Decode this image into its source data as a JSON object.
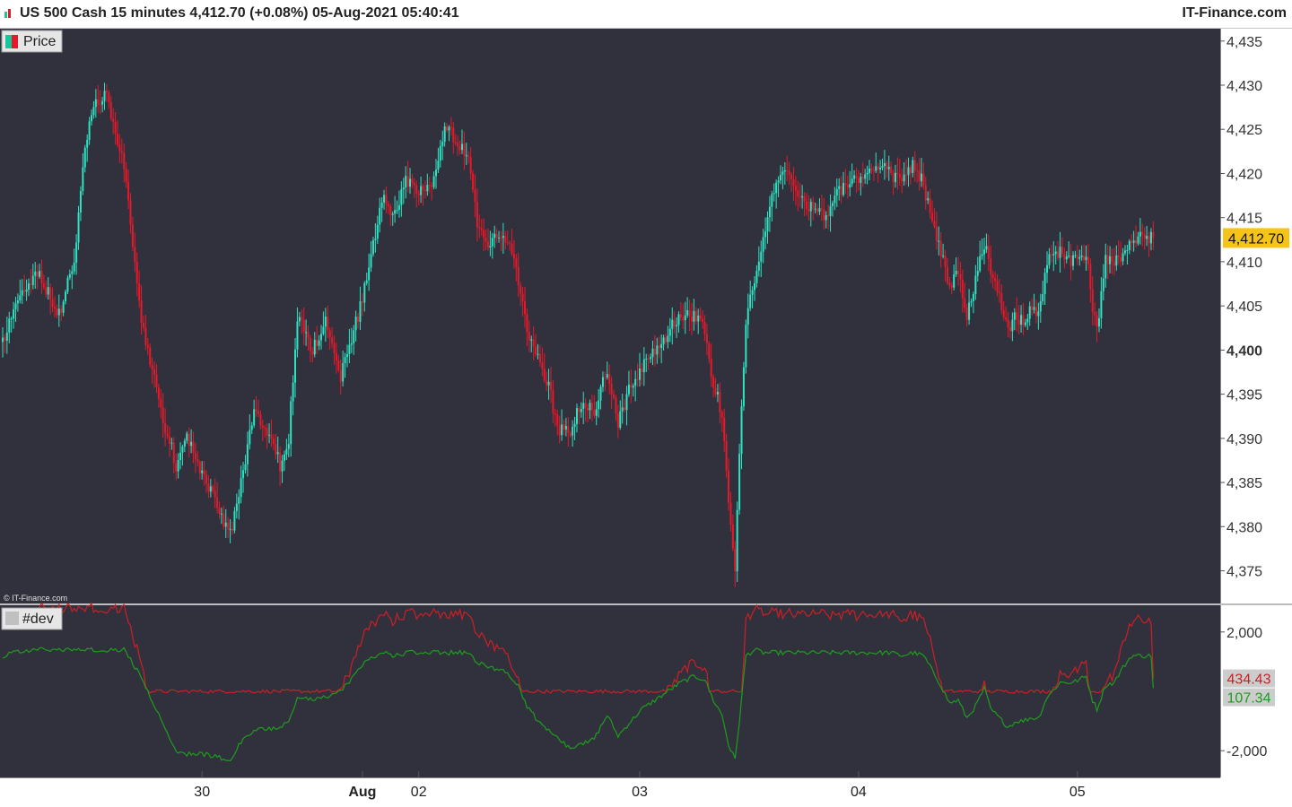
{
  "window": {
    "title": "US 500 Cash 15 minutes 4,412.70 (+0.08%) 05-Aug-2021 05:40:41",
    "brand": "IT-Finance.com",
    "watermark": "© IT-Finance.com"
  },
  "colors": {
    "background": "#31313d",
    "up": "#2de3c2",
    "down": "#e5192a",
    "dev_high": "#cc1f25",
    "dev_low": "#1d9d1d",
    "price_badge": "#f6c318"
  },
  "chart_data": [
    {
      "type": "candlestick",
      "panel": "price",
      "legend": "Price",
      "ylim": [
        4371.3,
        4436.4
      ],
      "yticks": [
        "4,435",
        "4,430",
        "4,425",
        "4,420",
        "4,415",
        "4,410",
        "4,405",
        "4,400",
        "4,395",
        "4,390",
        "4,385",
        "4,380",
        "4,375"
      ],
      "ytick_values": [
        4435,
        4430,
        4425,
        4420,
        4415,
        4410,
        4405,
        4400,
        4395,
        4390,
        4385,
        4380,
        4375
      ],
      "bold_tick": "4,400",
      "xticks": [
        "30",
        "Aug",
        "02",
        "03",
        "04",
        "05"
      ],
      "xtick_bars": [
        92,
        166,
        192,
        294,
        395,
        496
      ],
      "bar_count": 532,
      "last_price": 4412.7,
      "last_price_label": "4,412.70",
      "anchors": [
        [
          0,
          4401
        ],
        [
          6,
          4405
        ],
        [
          16,
          4409
        ],
        [
          26,
          4404
        ],
        [
          33,
          4410
        ],
        [
          38,
          4423
        ],
        [
          42,
          4428
        ],
        [
          48,
          4429
        ],
        [
          56,
          4421
        ],
        [
          63,
          4405
        ],
        [
          72,
          4394
        ],
        [
          80,
          4387
        ],
        [
          85,
          4390
        ],
        [
          92,
          4386
        ],
        [
          98,
          4383
        ],
        [
          105,
          4379
        ],
        [
          111,
          4386
        ],
        [
          116,
          4393
        ],
        [
          122,
          4391
        ],
        [
          128,
          4387
        ],
        [
          132,
          4390
        ],
        [
          136,
          4404
        ],
        [
          143,
          4400
        ],
        [
          149,
          4403
        ],
        [
          156,
          4397
        ],
        [
          162,
          4402
        ],
        [
          167,
          4407
        ],
        [
          172,
          4413
        ],
        [
          176,
          4418
        ],
        [
          180,
          4415
        ],
        [
          186,
          4419
        ],
        [
          193,
          4418
        ],
        [
          199,
          4419
        ],
        [
          204,
          4425
        ],
        [
          209,
          4424
        ],
        [
          215,
          4422
        ],
        [
          219,
          4414
        ],
        [
          224,
          4412
        ],
        [
          232,
          4413
        ],
        [
          238,
          4408
        ],
        [
          242,
          4402
        ],
        [
          247,
          4399
        ],
        [
          252,
          4396
        ],
        [
          256,
          4391
        ],
        [
          262,
          4391
        ],
        [
          267,
          4394
        ],
        [
          273,
          4393
        ],
        [
          279,
          4398
        ],
        [
          284,
          4392
        ],
        [
          290,
          4396
        ],
        [
          295,
          4398
        ],
        [
          301,
          4400
        ],
        [
          307,
          4402
        ],
        [
          313,
          4404
        ],
        [
          319,
          4404
        ],
        [
          324,
          4402
        ],
        [
          328,
          4396
        ],
        [
          332,
          4393
        ],
        [
          335,
          4383
        ],
        [
          338,
          4375
        ],
        [
          340,
          4388
        ],
        [
          343,
          4403
        ],
        [
          347,
          4408
        ],
        [
          351,
          4412
        ],
        [
          355,
          4417
        ],
        [
          359,
          4420
        ],
        [
          363,
          4420
        ],
        [
          367,
          4418
        ],
        [
          373,
          4416
        ],
        [
          379,
          4415
        ],
        [
          385,
          4418
        ],
        [
          393,
          4419
        ],
        [
          399,
          4420
        ],
        [
          405,
          4421
        ],
        [
          410,
          4420
        ],
        [
          415,
          4419
        ],
        [
          420,
          4421
        ],
        [
          425,
          4419
        ],
        [
          429,
          4414
        ],
        [
          433,
          4411
        ],
        [
          437,
          4407
        ],
        [
          441,
          4409
        ],
        [
          445,
          4404
        ],
        [
          449,
          4408
        ],
        [
          453,
          4412
        ],
        [
          456,
          4409
        ],
        [
          460,
          4406
        ],
        [
          464,
          4402
        ],
        [
          468,
          4404
        ],
        [
          471,
          4403
        ],
        [
          474,
          4405
        ],
        [
          478,
          4404
        ],
        [
          482,
          4410
        ],
        [
          488,
          4411
        ],
        [
          494,
          4410
        ],
        [
          500,
          4411
        ],
        [
          503,
          4405
        ],
        [
          505,
          4402
        ],
        [
          509,
          4410
        ],
        [
          513,
          4410
        ],
        [
          517,
          4411
        ],
        [
          521,
          4412.7
        ],
        [
          531,
          4412.7
        ]
      ],
      "dev_anchors": [
        [
          0,
          1.2
        ],
        [
          6,
          1.3
        ],
        [
          16,
          1.4
        ],
        [
          26,
          1.4
        ],
        [
          33,
          1.4
        ],
        [
          38,
          1.4
        ],
        [
          42,
          1.4
        ],
        [
          48,
          1.4
        ],
        [
          56,
          1.4
        ],
        [
          63,
          0.6
        ],
        [
          72,
          -0.8
        ],
        [
          80,
          -2.0
        ],
        [
          85,
          -2.1
        ],
        [
          92,
          -2.1
        ],
        [
          98,
          -2.2
        ],
        [
          105,
          -2.3
        ],
        [
          111,
          -1.6
        ],
        [
          116,
          -1.3
        ],
        [
          122,
          -1.3
        ],
        [
          128,
          -1.2
        ],
        [
          132,
          -1.0
        ],
        [
          136,
          -0.2
        ],
        [
          143,
          -0.3
        ],
        [
          149,
          -0.2
        ],
        [
          156,
          0.0
        ],
        [
          162,
          0.5
        ],
        [
          167,
          1.0
        ],
        [
          172,
          1.2
        ],
        [
          176,
          1.3
        ],
        [
          180,
          1.2
        ],
        [
          186,
          1.3
        ],
        [
          193,
          1.3
        ],
        [
          199,
          1.3
        ],
        [
          204,
          1.3
        ],
        [
          209,
          1.3
        ],
        [
          215,
          1.3
        ],
        [
          219,
          1.0
        ],
        [
          224,
          0.8
        ],
        [
          232,
          0.7
        ],
        [
          238,
          0.2
        ],
        [
          242,
          -0.5
        ],
        [
          247,
          -1.0
        ],
        [
          252,
          -1.3
        ],
        [
          256,
          -1.6
        ],
        [
          262,
          -1.9
        ],
        [
          267,
          -1.8
        ],
        [
          273,
          -1.6
        ],
        [
          279,
          -0.8
        ],
        [
          284,
          -1.5
        ],
        [
          290,
          -1.0
        ],
        [
          295,
          -0.6
        ],
        [
          301,
          -0.3
        ],
        [
          307,
          0.0
        ],
        [
          313,
          0.3
        ],
        [
          319,
          0.5
        ],
        [
          324,
          0.4
        ],
        [
          328,
          -0.3
        ],
        [
          332,
          -0.8
        ],
        [
          335,
          -1.8
        ],
        [
          338,
          -2.3
        ],
        [
          340,
          -1.0
        ],
        [
          343,
          1.2
        ],
        [
          347,
          1.4
        ],
        [
          351,
          1.3
        ],
        [
          355,
          1.3
        ],
        [
          359,
          1.3
        ],
        [
          363,
          1.3
        ],
        [
          367,
          1.3
        ],
        [
          373,
          1.3
        ],
        [
          379,
          1.3
        ],
        [
          385,
          1.3
        ],
        [
          393,
          1.3
        ],
        [
          399,
          1.3
        ],
        [
          405,
          1.3
        ],
        [
          410,
          1.3
        ],
        [
          415,
          1.2
        ],
        [
          420,
          1.3
        ],
        [
          425,
          1.2
        ],
        [
          429,
          0.7
        ],
        [
          433,
          0.2
        ],
        [
          437,
          -0.4
        ],
        [
          441,
          -0.3
        ],
        [
          445,
          -0.9
        ],
        [
          449,
          -0.5
        ],
        [
          453,
          0.1
        ],
        [
          456,
          -0.6
        ],
        [
          460,
          -0.9
        ],
        [
          464,
          -1.2
        ],
        [
          468,
          -1.0
        ],
        [
          471,
          -1.0
        ],
        [
          474,
          -0.9
        ],
        [
          478,
          -0.9
        ],
        [
          482,
          -0.2
        ],
        [
          488,
          0.3
        ],
        [
          494,
          0.3
        ],
        [
          500,
          0.5
        ],
        [
          503,
          -0.3
        ],
        [
          505,
          -0.6
        ],
        [
          509,
          0.2
        ],
        [
          513,
          0.3
        ],
        [
          517,
          0.8
        ],
        [
          521,
          1.2
        ],
        [
          531,
          1.2
        ]
      ]
    },
    {
      "type": "line",
      "panel": "indicator",
      "legend": "#dev",
      "ylim": [
        -2900,
        2900
      ],
      "yticks": [
        "2,000",
        "-2,000"
      ],
      "ytick_values": [
        2000,
        -2000
      ],
      "series": [
        {
          "role": "upper",
          "color": "#cc1f25",
          "last_value": 434.43,
          "last_label": "434.43"
        },
        {
          "role": "lower",
          "color": "#1d9d1d",
          "last_value": 107.34,
          "last_label": "107.34"
        }
      ]
    }
  ]
}
